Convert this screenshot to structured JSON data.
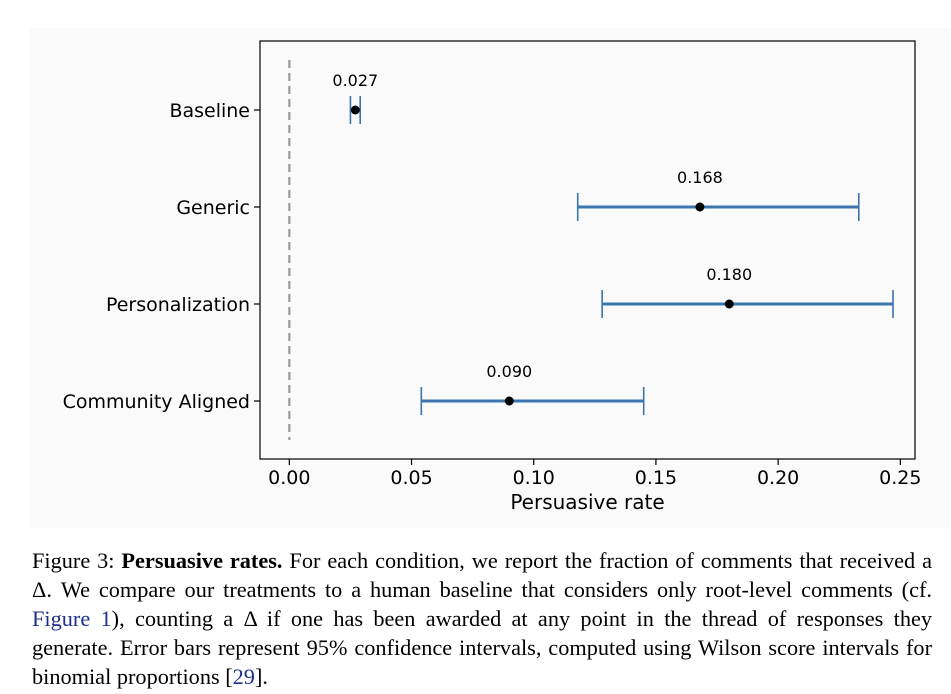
{
  "chart_data": {
    "type": "errorbar",
    "categories": [
      "Baseline",
      "Generic",
      "Personalization",
      "Community Aligned"
    ],
    "values": [
      0.027,
      0.168,
      0.18,
      0.09
    ],
    "value_labels": [
      "0.027",
      "0.168",
      "0.180",
      "0.090"
    ],
    "ci_lower": [
      0.025,
      0.118,
      0.128,
      0.054
    ],
    "ci_upper": [
      0.029,
      0.233,
      0.247,
      0.145
    ],
    "reference_line": 0.0,
    "xlim": [
      -0.012,
      0.256
    ],
    "xticks": [
      0.0,
      0.05,
      0.1,
      0.15,
      0.2,
      0.25
    ],
    "xtick_labels": [
      "0.00",
      "0.05",
      "0.10",
      "0.15",
      "0.20",
      "0.25"
    ],
    "xlabel": "Persuasive rate",
    "ylabel": "",
    "errorbar_color": "#3a75b0",
    "point_color": "#000000",
    "reference_color": "#999999"
  },
  "caption": {
    "label": "Figure 3:",
    "title": "Persuasive rates.",
    "text_1": "For each condition, we report the fraction of comments that received a Δ. We compare our treatments to a human baseline that considers only root-level comments (cf.",
    "figure_ref": "Figure 1",
    "text_2": "), counting a Δ if one has been awarded at any point in the thread of responses they generate. Error bars represent 95% confidence intervals, computed using Wilson score intervals for binomial proportions [",
    "citation": "29",
    "text_3": "]."
  }
}
